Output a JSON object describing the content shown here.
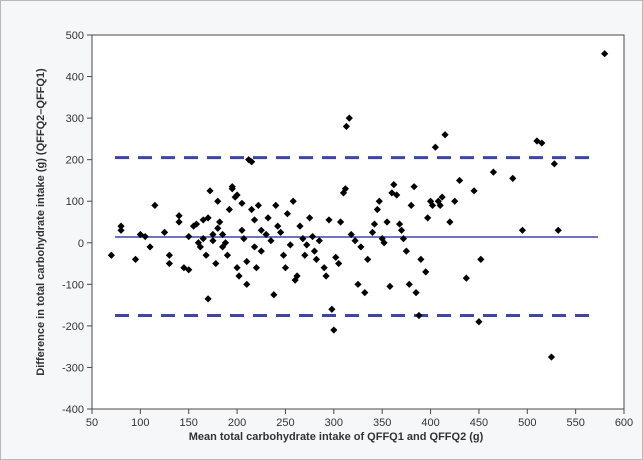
{
  "chart_data": {
    "type": "scatter",
    "title": "",
    "xlabel": "Mean total carbohydrate intake of  QFFQ1 and  QFFQ2 (g)",
    "ylabel": "Difference in total carbohydrate intake (g) (QFFQ2–QFFQ1)",
    "xlim": [
      50,
      600
    ],
    "ylim": [
      -400,
      500
    ],
    "x_ticks": [
      50,
      100,
      150,
      200,
      250,
      300,
      350,
      400,
      450,
      500,
      550,
      600
    ],
    "y_ticks": [
      500,
      400,
      300,
      200,
      100,
      0,
      -100,
      -200,
      -300,
      -400
    ],
    "grid": false,
    "legend": "none",
    "reference_lines": [
      {
        "y": 205,
        "style": "dashed"
      },
      {
        "y": 14,
        "style": "solid"
      },
      {
        "y": -175,
        "style": "dashed"
      }
    ],
    "colors": {
      "points": "#000000",
      "lines": "#3f44aa"
    },
    "points": [
      [
        70,
        -30
      ],
      [
        80,
        40
      ],
      [
        80,
        30
      ],
      [
        95,
        -40
      ],
      [
        100,
        20
      ],
      [
        105,
        15
      ],
      [
        110,
        -10
      ],
      [
        115,
        90
      ],
      [
        125,
        25
      ],
      [
        130,
        -30
      ],
      [
        130,
        -50
      ],
      [
        140,
        50
      ],
      [
        140,
        65
      ],
      [
        145,
        -60
      ],
      [
        150,
        -65
      ],
      [
        150,
        15
      ],
      [
        155,
        40
      ],
      [
        158,
        45
      ],
      [
        160,
        0
      ],
      [
        162,
        -10
      ],
      [
        165,
        10
      ],
      [
        165,
        55
      ],
      [
        168,
        -30
      ],
      [
        170,
        -135
      ],
      [
        170,
        60
      ],
      [
        172,
        125
      ],
      [
        175,
        5
      ],
      [
        175,
        20
      ],
      [
        178,
        -50
      ],
      [
        180,
        100
      ],
      [
        180,
        35
      ],
      [
        182,
        50
      ],
      [
        185,
        20
      ],
      [
        185,
        -10
      ],
      [
        188,
        0
      ],
      [
        190,
        -30
      ],
      [
        192,
        80
      ],
      [
        195,
        135
      ],
      [
        195,
        130
      ],
      [
        198,
        110
      ],
      [
        200,
        115
      ],
      [
        200,
        -60
      ],
      [
        202,
        -80
      ],
      [
        205,
        95
      ],
      [
        205,
        30
      ],
      [
        207,
        10
      ],
      [
        210,
        -100
      ],
      [
        210,
        -45
      ],
      [
        212,
        200
      ],
      [
        215,
        195
      ],
      [
        215,
        80
      ],
      [
        218,
        55
      ],
      [
        218,
        -10
      ],
      [
        220,
        -60
      ],
      [
        222,
        90
      ],
      [
        225,
        30
      ],
      [
        225,
        -20
      ],
      [
        230,
        20
      ],
      [
        232,
        60
      ],
      [
        235,
        5
      ],
      [
        238,
        -125
      ],
      [
        240,
        90
      ],
      [
        242,
        40
      ],
      [
        245,
        25
      ],
      [
        248,
        -30
      ],
      [
        250,
        -60
      ],
      [
        252,
        70
      ],
      [
        255,
        -5
      ],
      [
        258,
        100
      ],
      [
        260,
        -90
      ],
      [
        262,
        -80
      ],
      [
        265,
        40
      ],
      [
        268,
        10
      ],
      [
        270,
        -30
      ],
      [
        272,
        -5
      ],
      [
        275,
        60
      ],
      [
        278,
        15
      ],
      [
        280,
        -20
      ],
      [
        282,
        -40
      ],
      [
        285,
        5
      ],
      [
        290,
        -60
      ],
      [
        292,
        -80
      ],
      [
        295,
        55
      ],
      [
        298,
        -160
      ],
      [
        300,
        -210
      ],
      [
        302,
        -35
      ],
      [
        305,
        -50
      ],
      [
        307,
        50
      ],
      [
        310,
        120
      ],
      [
        312,
        130
      ],
      [
        313,
        280
      ],
      [
        316,
        300
      ],
      [
        318,
        20
      ],
      [
        322,
        5
      ],
      [
        325,
        -100
      ],
      [
        328,
        -10
      ],
      [
        332,
        -120
      ],
      [
        335,
        -40
      ],
      [
        340,
        25
      ],
      [
        342,
        45
      ],
      [
        345,
        80
      ],
      [
        347,
        100
      ],
      [
        350,
        10
      ],
      [
        352,
        0
      ],
      [
        355,
        50
      ],
      [
        358,
        -105
      ],
      [
        360,
        120
      ],
      [
        362,
        140
      ],
      [
        365,
        115
      ],
      [
        368,
        45
      ],
      [
        370,
        30
      ],
      [
        372,
        10
      ],
      [
        375,
        -20
      ],
      [
        378,
        -100
      ],
      [
        380,
        90
      ],
      [
        383,
        135
      ],
      [
        385,
        -120
      ],
      [
        388,
        -175
      ],
      [
        390,
        -40
      ],
      [
        395,
        -70
      ],
      [
        397,
        60
      ],
      [
        400,
        100
      ],
      [
        402,
        90
      ],
      [
        405,
        230
      ],
      [
        408,
        100
      ],
      [
        410,
        90
      ],
      [
        412,
        110
      ],
      [
        415,
        260
      ],
      [
        420,
        50
      ],
      [
        425,
        100
      ],
      [
        430,
        150
      ],
      [
        437,
        -85
      ],
      [
        445,
        125
      ],
      [
        450,
        -190
      ],
      [
        452,
        -40
      ],
      [
        465,
        170
      ],
      [
        485,
        155
      ],
      [
        495,
        30
      ],
      [
        510,
        245
      ],
      [
        515,
        240
      ],
      [
        525,
        -275
      ],
      [
        528,
        190
      ],
      [
        532,
        30
      ],
      [
        580,
        455
      ]
    ]
  }
}
